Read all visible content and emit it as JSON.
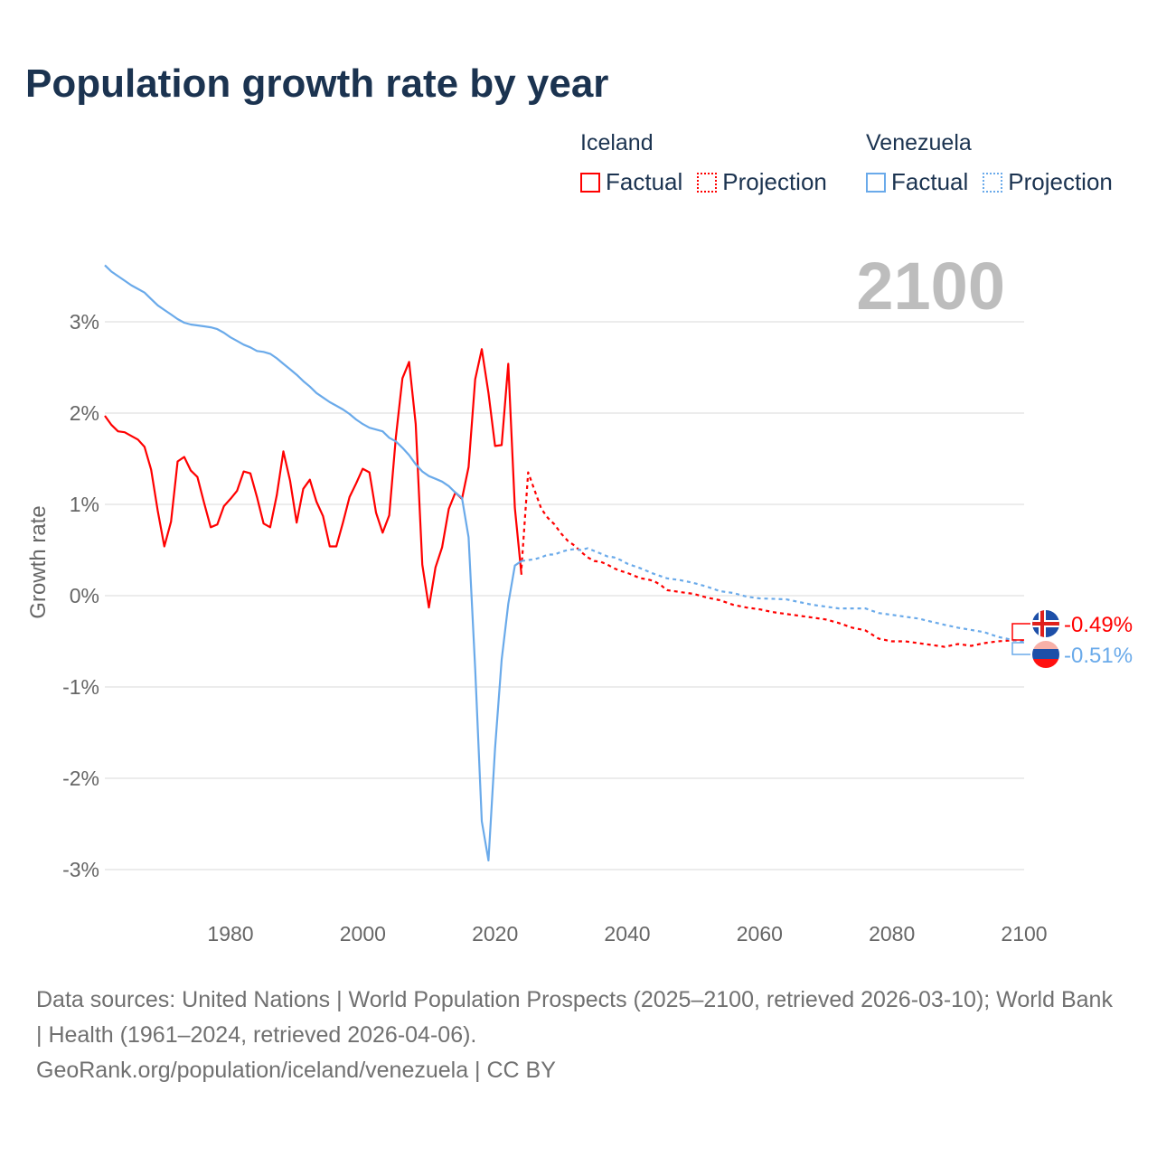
{
  "title": "Population growth rate by year",
  "legend": {
    "groups": [
      {
        "country": "Iceland",
        "factual": "Factual",
        "projection": "Projection",
        "color": "#ff0000"
      },
      {
        "country": "Venezuela",
        "factual": "Factual",
        "projection": "Projection",
        "color": "#6aaaea"
      }
    ]
  },
  "year_label": "2100",
  "end_labels": {
    "iceland": "-0.49%",
    "venezuela": "-0.51%"
  },
  "footer": {
    "sources": "Data sources: United Nations | World Population Prospects (2025–2100, retrieved 2026-03-10); World Bank | Health (1961–2024, retrieved 2026-04-06).",
    "credit": "GeoRank.org/population/iceland/venezuela | CC BY"
  },
  "chart_data": {
    "type": "line",
    "title": "Population growth rate by year",
    "xlabel": "",
    "ylabel": "Growth rate",
    "xlim": [
      1961,
      2100
    ],
    "ylim": [
      -3.5,
      3.7
    ],
    "x_ticks": [
      1980,
      2000,
      2020,
      2040,
      2060,
      2080,
      2100
    ],
    "x_tick_labels": [
      "1980",
      "2000",
      "2020",
      "2040",
      "2060",
      "2080",
      "2100"
    ],
    "y_ticks": [
      3,
      2,
      1,
      0,
      -1,
      -2,
      -3
    ],
    "y_tick_labels": [
      "3%",
      "2%",
      "1%",
      "0%",
      "-1%",
      "-2%",
      "-3%"
    ],
    "grid": true,
    "legend_position": "top-right",
    "series": [
      {
        "name": "Iceland Factual",
        "color": "#ff0000",
        "dashed": false,
        "x": [
          1961,
          1962,
          1963,
          1964,
          1965,
          1966,
          1967,
          1968,
          1969,
          1970,
          1971,
          1972,
          1973,
          1974,
          1975,
          1976,
          1977,
          1978,
          1979,
          1980,
          1981,
          1982,
          1983,
          1984,
          1985,
          1986,
          1987,
          1988,
          1989,
          1990,
          1991,
          1992,
          1993,
          1994,
          1995,
          1996,
          1997,
          1998,
          1999,
          2000,
          2001,
          2002,
          2003,
          2004,
          2005,
          2006,
          2007,
          2008,
          2009,
          2010,
          2011,
          2012,
          2013,
          2014,
          2015,
          2016,
          2017,
          2018,
          2019,
          2020,
          2021,
          2022,
          2023,
          2024
        ],
        "y": [
          1.97,
          1.87,
          1.8,
          1.79,
          1.75,
          1.71,
          1.63,
          1.38,
          0.93,
          0.54,
          0.81,
          1.47,
          1.52,
          1.37,
          1.3,
          1.02,
          0.75,
          0.78,
          0.98,
          1.06,
          1.15,
          1.36,
          1.34,
          1.08,
          0.79,
          0.75,
          1.1,
          1.58,
          1.26,
          0.8,
          1.17,
          1.27,
          1.03,
          0.87,
          0.54,
          0.54,
          0.8,
          1.08,
          1.23,
          1.39,
          1.35,
          0.91,
          0.69,
          0.88,
          1.73,
          2.38,
          2.56,
          1.88,
          0.34,
          -0.13,
          0.31,
          0.53,
          0.95,
          1.13,
          1.06,
          1.41,
          2.37,
          2.7,
          2.22,
          1.64,
          1.65,
          2.54,
          0.96,
          0.23
        ]
      },
      {
        "name": "Iceland Projection",
        "color": "#ff0000",
        "dashed": true,
        "x": [
          2024,
          2025,
          2026,
          2027,
          2028,
          2029,
          2030,
          2031,
          2032,
          2033,
          2034,
          2035,
          2036,
          2037,
          2038,
          2039,
          2040,
          2041,
          2042,
          2043,
          2044,
          2045,
          2046,
          2048,
          2050,
          2052,
          2054,
          2056,
          2058,
          2060,
          2062,
          2064,
          2066,
          2068,
          2070,
          2072,
          2074,
          2076,
          2078,
          2080,
          2082,
          2084,
          2086,
          2088,
          2090,
          2092,
          2094,
          2096,
          2098,
          2100
        ],
        "y": [
          0.3,
          1.35,
          1.15,
          0.95,
          0.85,
          0.78,
          0.68,
          0.6,
          0.55,
          0.48,
          0.42,
          0.38,
          0.37,
          0.34,
          0.3,
          0.27,
          0.25,
          0.22,
          0.19,
          0.18,
          0.16,
          0.12,
          0.06,
          0.04,
          0.02,
          -0.02,
          -0.05,
          -0.1,
          -0.13,
          -0.15,
          -0.18,
          -0.2,
          -0.22,
          -0.24,
          -0.26,
          -0.3,
          -0.35,
          -0.38,
          -0.47,
          -0.5,
          -0.5,
          -0.52,
          -0.54,
          -0.56,
          -0.53,
          -0.55,
          -0.52,
          -0.5,
          -0.49,
          -0.49
        ]
      },
      {
        "name": "Venezuela Factual",
        "color": "#6aaaea",
        "dashed": false,
        "x": [
          1961,
          1962,
          1963,
          1964,
          1965,
          1966,
          1967,
          1968,
          1969,
          1970,
          1971,
          1972,
          1973,
          1974,
          1975,
          1976,
          1977,
          1978,
          1979,
          1980,
          1981,
          1982,
          1983,
          1984,
          1985,
          1986,
          1987,
          1988,
          1989,
          1990,
          1991,
          1992,
          1993,
          1994,
          1995,
          1996,
          1997,
          1998,
          1999,
          2000,
          2001,
          2002,
          2003,
          2004,
          2005,
          2006,
          2007,
          2008,
          2009,
          2010,
          2011,
          2012,
          2013,
          2014,
          2015,
          2016,
          2017,
          2018,
          2019,
          2020,
          2021,
          2022,
          2023,
          2024
        ],
        "y": [
          3.62,
          3.55,
          3.5,
          3.45,
          3.4,
          3.36,
          3.32,
          3.25,
          3.18,
          3.13,
          3.08,
          3.03,
          2.99,
          2.97,
          2.96,
          2.95,
          2.94,
          2.92,
          2.88,
          2.83,
          2.79,
          2.75,
          2.72,
          2.68,
          2.67,
          2.65,
          2.6,
          2.54,
          2.48,
          2.42,
          2.35,
          2.29,
          2.22,
          2.17,
          2.12,
          2.08,
          2.04,
          1.99,
          1.93,
          1.88,
          1.84,
          1.82,
          1.8,
          1.73,
          1.69,
          1.62,
          1.54,
          1.44,
          1.36,
          1.31,
          1.28,
          1.25,
          1.2,
          1.13,
          1.07,
          0.64,
          -0.8,
          -2.47,
          -2.9,
          -1.67,
          -0.7,
          -0.09,
          0.33,
          0.38
        ]
      },
      {
        "name": "Venezuela Projection",
        "color": "#6aaaea",
        "dashed": true,
        "x": [
          2024,
          2025,
          2026,
          2027,
          2028,
          2029,
          2030,
          2031,
          2032,
          2033,
          2034,
          2035,
          2036,
          2037,
          2038,
          2039,
          2040,
          2042,
          2044,
          2046,
          2048,
          2050,
          2052,
          2054,
          2056,
          2058,
          2060,
          2064,
          2068,
          2072,
          2076,
          2078,
          2080,
          2084,
          2088,
          2090,
          2094,
          2096,
          2100
        ],
        "y": [
          0.38,
          0.39,
          0.4,
          0.42,
          0.45,
          0.45,
          0.48,
          0.5,
          0.51,
          0.5,
          0.52,
          0.49,
          0.46,
          0.43,
          0.42,
          0.39,
          0.35,
          0.3,
          0.24,
          0.19,
          0.17,
          0.14,
          0.1,
          0.05,
          0.03,
          -0.01,
          -0.03,
          -0.04,
          -0.1,
          -0.14,
          -0.14,
          -0.19,
          -0.21,
          -0.25,
          -0.32,
          -0.35,
          -0.4,
          -0.45,
          -0.51
        ]
      }
    ]
  }
}
